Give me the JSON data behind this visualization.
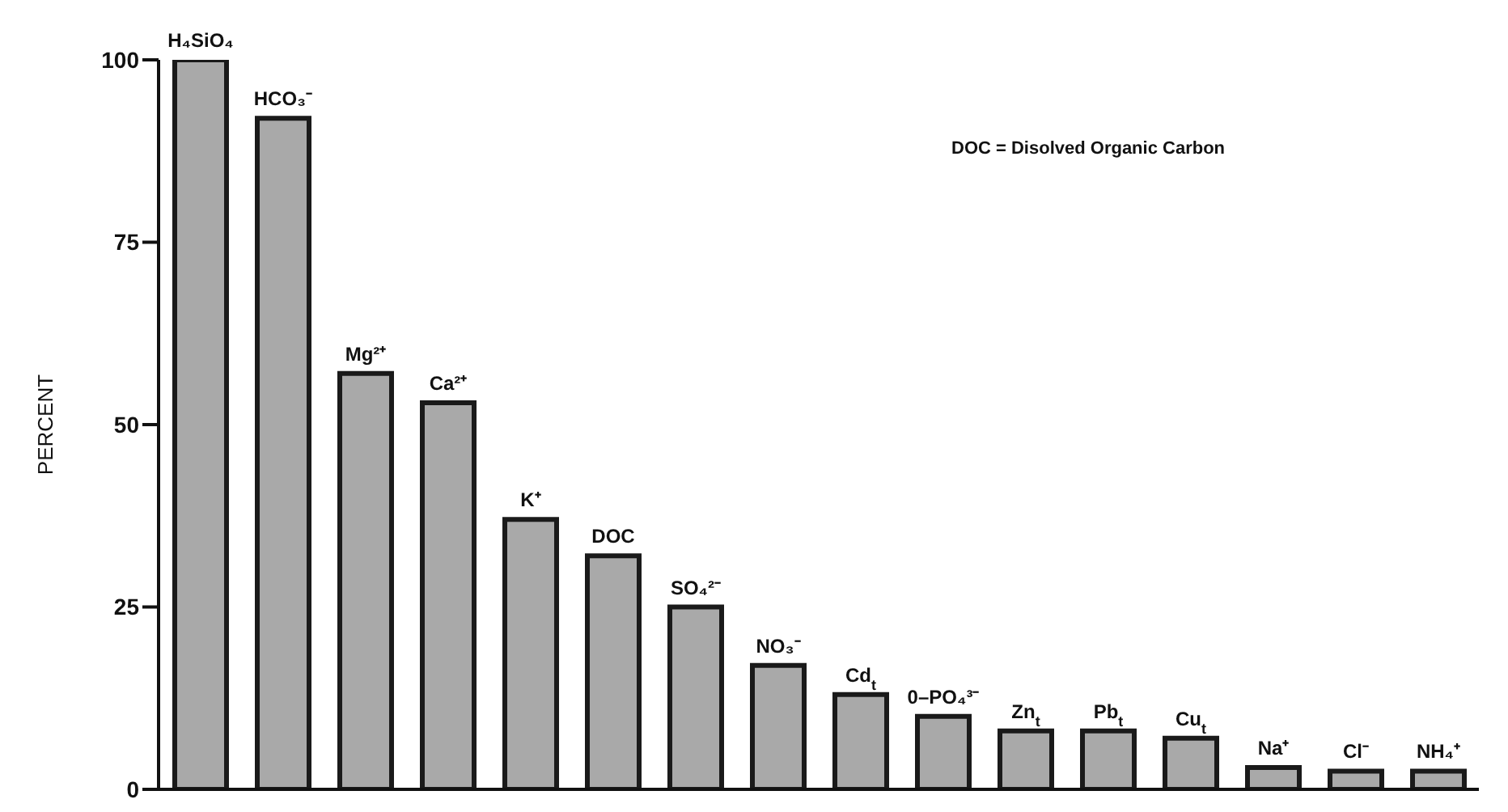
{
  "chart_data": {
    "type": "bar",
    "ylabel": "PERCENT",
    "categories": [
      "H₄SiO₄",
      "HCO₃⁻",
      "Mg²⁺",
      "Ca²⁺",
      "K⁺",
      "DOC",
      "SO₄²⁻",
      "NO₃⁻",
      "Cd$_{t}$",
      "0–PO₄³⁻",
      "Zn$_{t}$",
      "Pb$_{t}$",
      "Cu$_{t}$",
      "Na⁺",
      "Cl⁻",
      "NH₄⁺"
    ],
    "values": [
      100,
      92,
      57,
      53,
      37,
      32,
      25,
      17,
      13,
      10,
      8,
      8,
      7,
      3,
      2.5,
      2.5
    ],
    "color": "#a9a9a9",
    "ylim": [
      0,
      100
    ],
    "yticks": [
      0,
      25,
      50,
      75,
      100
    ],
    "annotations": [
      "DOC = Disolved Organic Carbon"
    ]
  }
}
